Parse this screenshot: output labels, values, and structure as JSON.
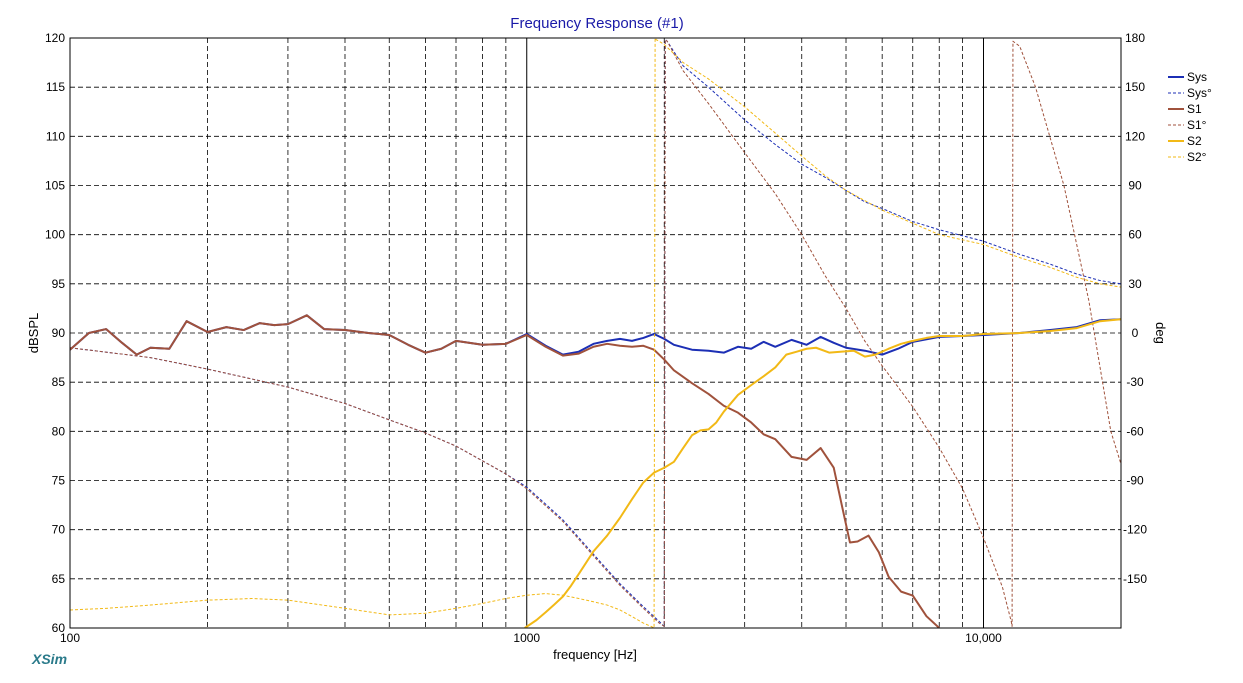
{
  "chart_data": {
    "type": "line",
    "title": "Frequency Response (#1)",
    "xlabel": "frequency [Hz]",
    "ylabel_left": "dBSPL",
    "ylabel_right": "deg",
    "x_scale": "log",
    "xlim": [
      100,
      20000
    ],
    "ylim_left": [
      60,
      120
    ],
    "ylim_right": [
      -180,
      180
    ],
    "x_tick_labels": [
      {
        "value": 100,
        "label": "100"
      },
      {
        "value": 1000,
        "label": "1000"
      },
      {
        "value": 10000,
        "label": "10,000"
      }
    ],
    "y_left_ticks": [
      60,
      65,
      70,
      75,
      80,
      85,
      90,
      95,
      100,
      105,
      110,
      115,
      120
    ],
    "y_right_ticks": [
      -150,
      -120,
      -90,
      -60,
      -30,
      0,
      30,
      60,
      90,
      120,
      150,
      180
    ],
    "grid": true,
    "legend_position": "top-right",
    "brand": "XSim",
    "series": [
      {
        "name": "Sys",
        "axis": "left",
        "color": "#1c2fb5",
        "style": "solid",
        "width": 2,
        "x": [
          100,
          110,
          120,
          130,
          140,
          150,
          165,
          180,
          200,
          220,
          240,
          260,
          280,
          300,
          330,
          360,
          400,
          450,
          500,
          550,
          600,
          650,
          700,
          800,
          900,
          1000,
          1100,
          1200,
          1300,
          1400,
          1500,
          1600,
          1700,
          1800,
          1900,
          2000,
          2100,
          2300,
          2500,
          2700,
          2900,
          3100,
          3300,
          3500,
          3800,
          4100,
          4400,
          4700,
          5000,
          5500,
          6000,
          6500,
          7000,
          8000,
          9000,
          10000,
          12000,
          14000,
          16000,
          18000,
          20000
        ],
        "values": [
          88.3,
          90.0,
          90.4,
          89.0,
          87.8,
          88.5,
          88.4,
          91.2,
          90.1,
          90.6,
          90.3,
          91.0,
          90.8,
          90.9,
          91.8,
          90.4,
          90.3,
          90.0,
          89.8,
          88.8,
          88.0,
          88.4,
          89.2,
          88.8,
          88.9,
          89.9,
          88.7,
          87.8,
          88.1,
          88.9,
          89.2,
          89.4,
          89.2,
          89.5,
          89.9,
          89.4,
          88.8,
          88.3,
          88.2,
          88.0,
          88.6,
          88.4,
          89.1,
          88.6,
          89.3,
          88.8,
          89.6,
          89.0,
          88.5,
          88.2,
          87.8,
          88.4,
          89.1,
          89.6,
          89.7,
          89.8,
          90.0,
          90.3,
          90.6,
          91.3,
          91.4
        ]
      },
      {
        "name": "Sys°",
        "axis": "right",
        "color": "#1c2fb5",
        "style": "dashed",
        "width": 1,
        "x": [
          100,
          150,
          200,
          300,
          400,
          500,
          600,
          700,
          800,
          900,
          1000,
          1200,
          1400,
          1600,
          1800,
          1950,
          2000,
          2010,
          2030,
          2200,
          2500,
          3000,
          3500,
          4000,
          4500,
          5000,
          5500,
          6000,
          7000,
          8000,
          10000,
          12000,
          14000,
          16000,
          18000,
          20000
        ],
        "values": [
          -9,
          -15,
          -22,
          -33,
          -43,
          -53,
          -61,
          -69,
          -78,
          -86,
          -94,
          -114,
          -135,
          -153,
          -167,
          -176,
          -179,
          179,
          178,
          163,
          150,
          130,
          115,
          103,
          95,
          87,
          80,
          76,
          68,
          63,
          56,
          48,
          42,
          36,
          32,
          30
        ]
      },
      {
        "name": "S1",
        "axis": "left",
        "color": "#a0523c",
        "style": "solid",
        "width": 2,
        "x": [
          100,
          110,
          120,
          130,
          140,
          150,
          165,
          180,
          200,
          220,
          240,
          260,
          280,
          300,
          330,
          360,
          400,
          450,
          500,
          550,
          600,
          650,
          700,
          800,
          900,
          1000,
          1100,
          1200,
          1300,
          1400,
          1500,
          1600,
          1700,
          1800,
          1900,
          2000,
          2100,
          2300,
          2500,
          2700,
          2900,
          3100,
          3300,
          3500,
          3800,
          4100,
          4400,
          4700,
          4900,
          5100,
          5300,
          5600,
          5900,
          6200,
          6600,
          7000,
          7500,
          8000
        ],
        "values": [
          88.3,
          90.0,
          90.4,
          89.0,
          87.8,
          88.5,
          88.4,
          91.2,
          90.1,
          90.6,
          90.3,
          91.0,
          90.8,
          90.9,
          91.8,
          90.4,
          90.3,
          90.0,
          89.8,
          88.8,
          88.0,
          88.4,
          89.2,
          88.8,
          88.9,
          89.8,
          88.6,
          87.7,
          87.9,
          88.6,
          88.9,
          88.7,
          88.6,
          88.7,
          88.3,
          87.3,
          86.2,
          84.9,
          83.8,
          82.6,
          81.9,
          80.9,
          79.7,
          79.2,
          77.4,
          77.1,
          78.3,
          76.3,
          72.4,
          68.7,
          68.8,
          69.4,
          67.7,
          65.2,
          63.7,
          63.3,
          61.2,
          60
        ]
      },
      {
        "name": "S1°",
        "axis": "right",
        "color": "#a0523c",
        "style": "dashed",
        "width": 1,
        "x": [
          100,
          150,
          200,
          300,
          400,
          500,
          600,
          700,
          800,
          900,
          1000,
          1200,
          1400,
          1600,
          1800,
          1950,
          2000,
          2010,
          2030,
          2200,
          2500,
          3000,
          3500,
          4000,
          4500,
          5000,
          5500,
          6000,
          7000,
          8000,
          9000,
          10000,
          11000,
          11500,
          11550,
          11600,
          12000,
          13000,
          15000,
          17000,
          19000,
          20000
        ],
        "values": [
          -9,
          -15,
          -22,
          -33,
          -43,
          -53,
          -61,
          -69,
          -78,
          -86,
          -95,
          -115,
          -136,
          -154,
          -168,
          -177,
          -179,
          179,
          178,
          160,
          140,
          110,
          85,
          60,
          35,
          15,
          -5,
          -20,
          -45,
          -70,
          -95,
          -125,
          -155,
          -176,
          -179,
          178,
          175,
          150,
          90,
          20,
          -60,
          -80
        ]
      },
      {
        "name": "S2",
        "axis": "left",
        "color": "#f2b916",
        "style": "solid",
        "width": 2,
        "x": [
          990,
          1050,
          1100,
          1150,
          1200,
          1250,
          1300,
          1400,
          1500,
          1600,
          1700,
          1800,
          1900,
          2000,
          2100,
          2200,
          2300,
          2400,
          2500,
          2600,
          2700,
          2900,
          3100,
          3300,
          3500,
          3700,
          3900,
          4100,
          4300,
          4600,
          4900,
          5200,
          5500,
          5800,
          6200,
          6600,
          7000,
          7500,
          8000,
          9000,
          10000,
          12000,
          14000,
          16000,
          18000,
          20000
        ],
        "values": [
          60,
          60.8,
          61.6,
          62.4,
          63.2,
          64.3,
          65.5,
          67.8,
          69.4,
          71.2,
          73.1,
          74.8,
          75.8,
          76.3,
          76.9,
          78.3,
          79.6,
          80.1,
          80.2,
          80.9,
          82.0,
          83.7,
          84.7,
          85.6,
          86.5,
          87.8,
          88.1,
          88.4,
          88.5,
          88.0,
          88.1,
          88.2,
          87.6,
          87.8,
          88.4,
          88.9,
          89.2,
          89.5,
          89.7,
          89.7,
          89.9,
          90.0,
          90.2,
          90.5,
          91.2,
          91.4
        ]
      },
      {
        "name": "S2°",
        "axis": "right",
        "color": "#f2b916",
        "style": "dashed",
        "width": 1,
        "x": [
          100,
          120,
          150,
          200,
          250,
          300,
          400,
          500,
          600,
          700,
          800,
          900,
          1000,
          1100,
          1200,
          1300,
          1400,
          1500,
          1600,
          1700,
          1800,
          1870,
          1900,
          1910,
          1920,
          1950,
          2000,
          2200,
          2500,
          3000,
          3500,
          4000,
          4500,
          5000,
          6000,
          7000,
          8000,
          10000,
          12000,
          14000,
          16000,
          18000,
          20000
        ],
        "values": [
          -169,
          -168,
          -166,
          -163,
          -162,
          -163,
          -168,
          -172,
          -171,
          -168,
          -165,
          -162,
          -160,
          -159,
          -160,
          -162,
          -164,
          -166,
          -169,
          -173,
          -177,
          -179,
          -180,
          180,
          179,
          178,
          176,
          165,
          155,
          138,
          122,
          108,
          96,
          87,
          75,
          67,
          60,
          54,
          46,
          40,
          34,
          30,
          28
        ]
      }
    ]
  }
}
